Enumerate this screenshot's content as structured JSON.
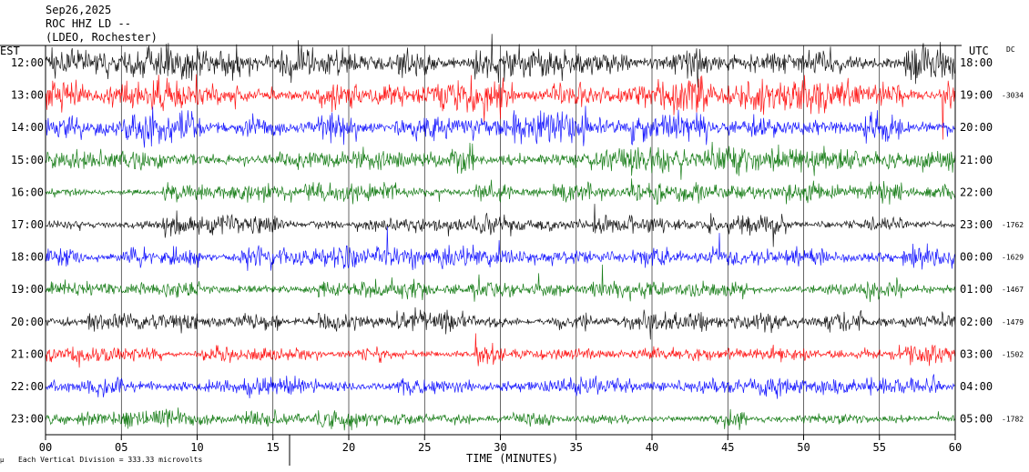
{
  "header": {
    "date": "Sep26,2025",
    "station": "ROC HHZ LD --",
    "network": "(LDEO, Rochester)",
    "left_zone": "EST",
    "right_zone": "UTC",
    "dc_label": "DC"
  },
  "footer": {
    "scale_note": "Each Vertical Division = 333.33 microvolts",
    "xlabel": "TIME (MINUTES)"
  },
  "colors": {
    "trace_cycle": [
      "#000000",
      "#ff0000",
      "#0000ff",
      "#007000"
    ],
    "axis": "#000000",
    "grid": "#000000"
  },
  "chart_data": {
    "type": "line",
    "title": "",
    "xlabel": "TIME (MINUTES)",
    "xlim": [
      0,
      60
    ],
    "x_ticks": [
      "00",
      "05",
      "10",
      "15",
      "20",
      "25",
      "30",
      "35",
      "40",
      "45",
      "50",
      "55",
      "60"
    ],
    "grid": "vertical",
    "rows": [
      {
        "est": "12:00",
        "utc": "18:00",
        "dc": "",
        "color": "#000000"
      },
      {
        "est": "13:00",
        "utc": "19:00",
        "dc": "-3034",
        "color": "#ff0000"
      },
      {
        "est": "14:00",
        "utc": "20:00",
        "dc": "",
        "color": "#0000ff"
      },
      {
        "est": "15:00",
        "utc": "21:00",
        "dc": "",
        "color": "#007000"
      },
      {
        "est": "16:00",
        "utc": "22:00",
        "dc": "",
        "color": "#007000"
      },
      {
        "est": "17:00",
        "utc": "23:00",
        "dc": "-1762",
        "color": "#000000"
      },
      {
        "est": "18:00",
        "utc": "00:00",
        "dc": "-1629",
        "color": "#0000ff"
      },
      {
        "est": "19:00",
        "utc": "01:00",
        "dc": "-1467",
        "color": "#007000"
      },
      {
        "est": "20:00",
        "utc": "02:00",
        "dc": "-1479",
        "color": "#000000"
      },
      {
        "est": "21:00",
        "utc": "03:00",
        "dc": "-1502",
        "color": "#ff0000"
      },
      {
        "est": "22:00",
        "utc": "04:00",
        "dc": "",
        "color": "#0000ff"
      },
      {
        "est": "23:00",
        "utc": "05:00",
        "dc": "-1782",
        "color": "#007000"
      }
    ]
  }
}
